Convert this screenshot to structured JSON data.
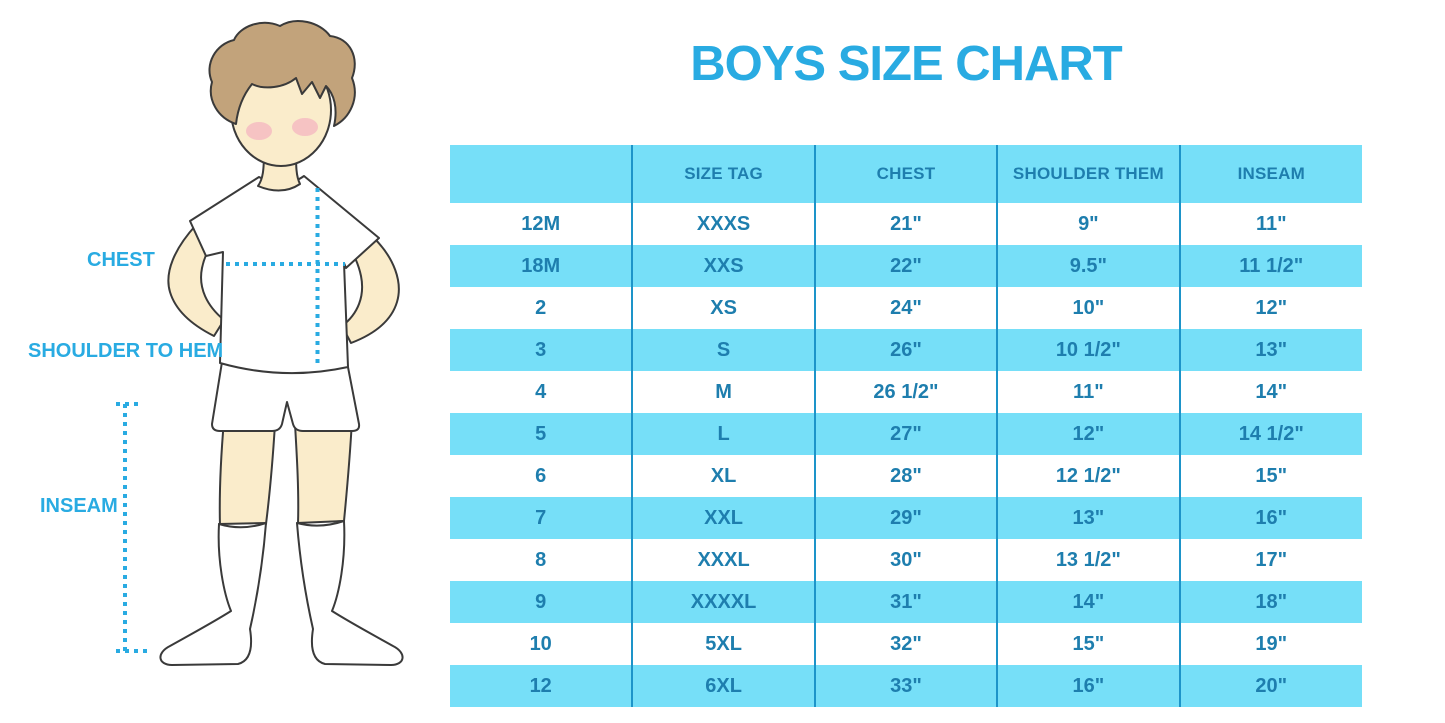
{
  "title": {
    "text": "BOYS SIZE CHART"
  },
  "figure": {
    "labels": {
      "chest": "CHEST",
      "shoulder_to_hem": "SHOULDER TO HEM",
      "inseam": "INSEAM"
    },
    "colors": {
      "hair": "#C2A37B",
      "skin": "#FAECCB",
      "blush": "#F3A8BE",
      "outline": "#3A3A3A",
      "measure_line": "#29ABE2"
    }
  },
  "colors": {
    "accent_blue": "#29ABE2",
    "row_light_blue": "#76DFF8",
    "table_text": "#1E7EAE",
    "column_separator": "#1D94C9",
    "background": "#FFFFFF"
  },
  "chart_data": {
    "type": "table",
    "title": "BOYS SIZE CHART",
    "columns": [
      "",
      "SIZE TAG",
      "CHEST",
      "SHOULDER THEM",
      "INSEAM"
    ],
    "rows": [
      [
        "12M",
        "XXXS",
        "21\"",
        "9\"",
        "11\""
      ],
      [
        "18M",
        "XXS",
        "22\"",
        "9.5\"",
        "11 1/2\""
      ],
      [
        "2",
        "XS",
        "24\"",
        "10\"",
        "12\""
      ],
      [
        "3",
        "S",
        "26\"",
        "10 1/2\"",
        "13\""
      ],
      [
        "4",
        "M",
        "26 1/2\"",
        "11\"",
        "14\""
      ],
      [
        "5",
        "L",
        "27\"",
        "12\"",
        "14 1/2\""
      ],
      [
        "6",
        "XL",
        "28\"",
        "12 1/2\"",
        "15\""
      ],
      [
        "7",
        "XXL",
        "29\"",
        "13\"",
        "16\""
      ],
      [
        "8",
        "XXXL",
        "30\"",
        "13 1/2\"",
        "17\""
      ],
      [
        "9",
        "XXXXL",
        "31\"",
        "14\"",
        "18\""
      ],
      [
        "10",
        "5XL",
        "32\"",
        "15\"",
        "19\""
      ],
      [
        "12",
        "6XL",
        "33\"",
        "16\"",
        "20\""
      ]
    ],
    "layout_hints": {
      "header_background": "#76DFF8",
      "alternating_rows": true,
      "first_data_row_background": "#FFFFFF"
    }
  }
}
